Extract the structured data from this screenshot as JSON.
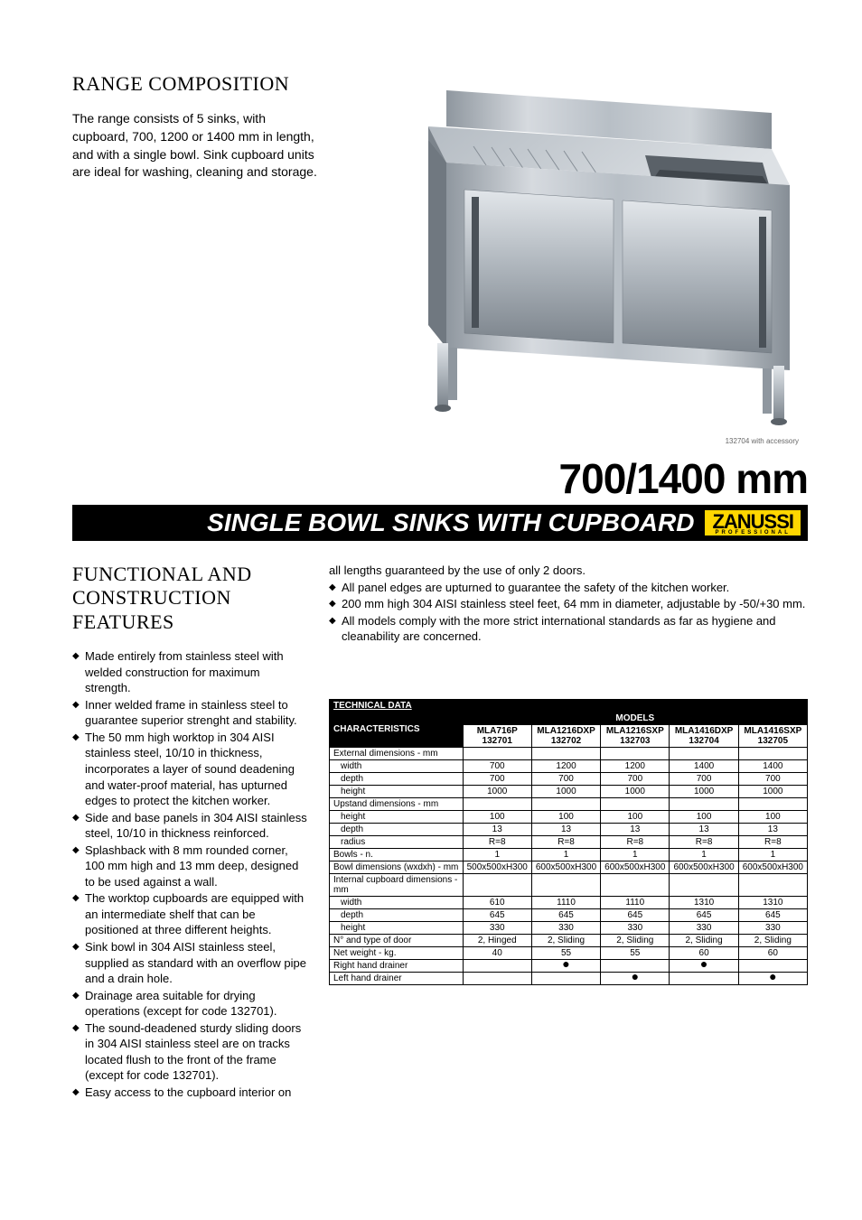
{
  "range_heading": "RANGE COMPOSITION",
  "range_text": "The range consists of 5 sinks, with cupboard, 700, 1200 or 1400 mm in length, and with a single bowl. Sink cupboard units are ideal for washing, cleaning and storage.",
  "image_caption": "132704 with accessory",
  "big_title": "700/1400 mm",
  "bar_text": "SINGLE BOWL SINKS WITH CUPBOARD",
  "logo_main": "ZANUSSI",
  "logo_sub": "PROFESSIONAL",
  "functional_heading": "FUNCTIONAL AND CONSTRUCTION FEATURES",
  "bullets_col1": [
    "Made entirely from stainless steel with welded construction for maximum strength.",
    "Inner welded frame in stainless steel to guarantee superior strenght and stability.",
    "The 50 mm high worktop in 304 AISI stainless steel, 10/10 in thickness, incorporates a layer of sound deadening and water-proof material, has upturned edges to protect the kitchen worker.",
    "Side and base panels in 304 AISI stainless steel, 10/10 in thickness reinforced.",
    "Splashback with 8 mm rounded corner, 100 mm high and 13 mm deep, designed to be used against a wall.",
    "The worktop cupboards are equipped with an intermediate shelf that can be positioned at three different heights.",
    "Sink bowl in 304 AISI stainless steel, supplied as standard with an overflow pipe and a drain hole.",
    "Drainage area suitable for drying operations (except for code 132701).",
    "The sound-deadened sturdy sliding doors in 304 AISI stainless steel are on tracks located flush to the front of the frame (except for code 132701).",
    "Easy access to the cupboard interior on"
  ],
  "col2_continuation": "all lengths guaranteed by the use of only 2 doors.",
  "bullets_col2": [
    "All panel edges are upturned to guarantee the safety of the kitchen worker.",
    "200 mm high 304 AISI stainless steel feet, 64 mm in diameter, adjustable by -50/+30 mm.",
    "All models comply with the more strict international standards as far as hygiene and cleanability are concerned."
  ],
  "table": {
    "tech_data": "TECHNICAL DATA",
    "characteristics": "CHARACTERISTICS",
    "models_label": "MODELS",
    "models": [
      {
        "name": "MLA716P",
        "code": "132701"
      },
      {
        "name": "MLA1216DXP",
        "code": "132702"
      },
      {
        "name": "MLA1216SXP",
        "code": "132703"
      },
      {
        "name": "MLA1416DXP",
        "code": "132704"
      },
      {
        "name": "MLA1416SXP",
        "code": "132705"
      }
    ],
    "rows": [
      {
        "label": "External dimensions - mm",
        "vals": [
          "",
          "",
          "",
          "",
          ""
        ],
        "indent": false
      },
      {
        "label": "width",
        "vals": [
          "700",
          "1200",
          "1200",
          "1400",
          "1400"
        ],
        "indent": true
      },
      {
        "label": "depth",
        "vals": [
          "700",
          "700",
          "700",
          "700",
          "700"
        ],
        "indent": true
      },
      {
        "label": "height",
        "vals": [
          "1000",
          "1000",
          "1000",
          "1000",
          "1000"
        ],
        "indent": true
      },
      {
        "label": "Upstand dimensions - mm",
        "vals": [
          "",
          "",
          "",
          "",
          ""
        ],
        "indent": false
      },
      {
        "label": "height",
        "vals": [
          "100",
          "100",
          "100",
          "100",
          "100"
        ],
        "indent": true
      },
      {
        "label": "depth",
        "vals": [
          "13",
          "13",
          "13",
          "13",
          "13"
        ],
        "indent": true
      },
      {
        "label": "radius",
        "vals": [
          "R=8",
          "R=8",
          "R=8",
          "R=8",
          "R=8"
        ],
        "indent": true
      },
      {
        "label": "Bowls - n.",
        "vals": [
          "1",
          "1",
          "1",
          "1",
          "1"
        ],
        "indent": false
      },
      {
        "label": "Bowl dimensions (wxdxh) - mm",
        "vals": [
          "500x500xH300",
          "600x500xH300",
          "600x500xH300",
          "600x500xH300",
          "600x500xH300"
        ],
        "indent": false
      },
      {
        "label": "Internal cupboard dimensions - mm",
        "vals": [
          "",
          "",
          "",
          "",
          ""
        ],
        "indent": false
      },
      {
        "label": "width",
        "vals": [
          "610",
          "1110",
          "1110",
          "1310",
          "1310"
        ],
        "indent": true
      },
      {
        "label": "depth",
        "vals": [
          "645",
          "645",
          "645",
          "645",
          "645"
        ],
        "indent": true
      },
      {
        "label": "height",
        "vals": [
          "330",
          "330",
          "330",
          "330",
          "330"
        ],
        "indent": true
      },
      {
        "label": "N° and type of door",
        "vals": [
          "2, Hinged",
          "2, Sliding",
          "2, Sliding",
          "2, Sliding",
          "2, Sliding"
        ],
        "indent": false
      },
      {
        "label": "Net weight - kg.",
        "vals": [
          "40",
          "55",
          "55",
          "60",
          "60"
        ],
        "indent": false
      },
      {
        "label": "Right hand drainer",
        "vals": [
          "",
          "●",
          "",
          "●",
          ""
        ],
        "indent": false,
        "dot": true
      },
      {
        "label": "Left hand drainer",
        "vals": [
          "",
          "",
          "●",
          "",
          "●"
        ],
        "indent": false,
        "dot": true
      }
    ]
  },
  "colors": {
    "black": "#000000",
    "white": "#ffffff",
    "yellow": "#ffd700",
    "steel_light": "#c8cdd2",
    "steel_mid": "#9ba3ab",
    "steel_dark": "#6b747c"
  }
}
